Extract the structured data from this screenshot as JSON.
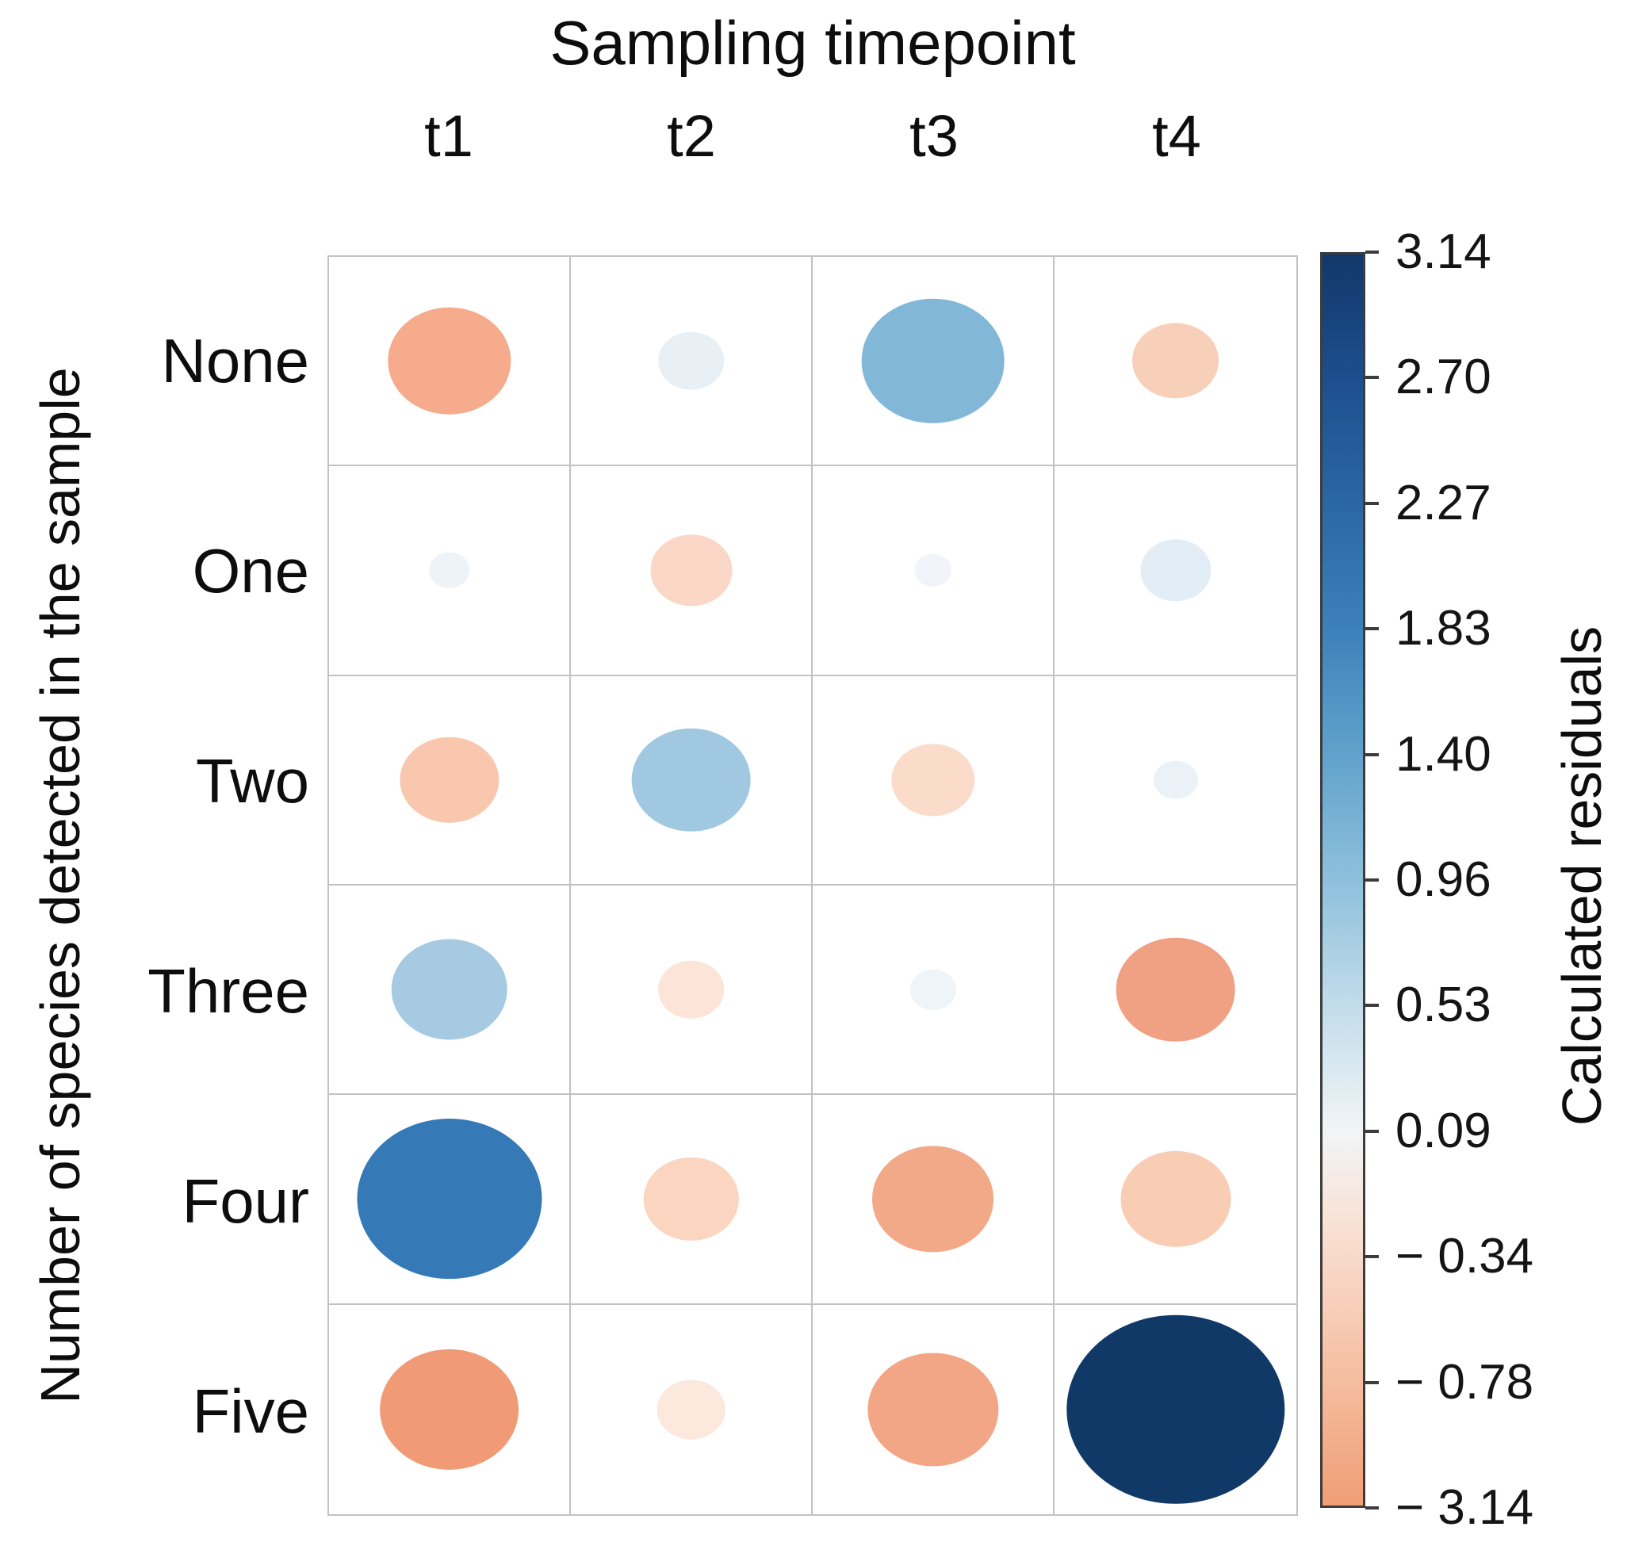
{
  "chart_data": {
    "type": "bubble-matrix",
    "title": "Sampling timepoint",
    "xlabel": "Sampling timepoint",
    "ylabel": "Number of species detected in the sample",
    "columns": [
      "t1",
      "t2",
      "t3",
      "t4"
    ],
    "rows": [
      "None",
      "One",
      "Two",
      "Three",
      "Four",
      "Five"
    ],
    "value_range": [
      -3.14,
      3.14
    ],
    "bubble_scaling": "area proportional to |residual|; diameter = 0.9 * sqrt(|v|/3.14) of cell",
    "series": [
      {
        "row": "None",
        "values": [
          -1.0,
          0.29,
          1.35,
          -0.5
        ],
        "colors": [
          "#f5ab8c",
          "#e8f0f6",
          "#82b7d7",
          "#f8cfb9"
        ]
      },
      {
        "row": "One",
        "values": [
          0.11,
          -0.44,
          0.09,
          0.33
        ],
        "colors": [
          "#eef3f8",
          "#fad7c6",
          "#f1f5f9",
          "#e3edf5"
        ]
      },
      {
        "row": "Two",
        "values": [
          -0.65,
          0.94,
          -0.46,
          0.13
        ],
        "colors": [
          "#f8c7ae",
          "#a0c8e0",
          "#fbdccb",
          "#eaf2f8"
        ]
      },
      {
        "row": "Three",
        "values": [
          0.89,
          -0.29,
          0.14,
          -0.94
        ],
        "colors": [
          "#a6cae1",
          "#fce4d8",
          "#eef4f8",
          "#f0a183"
        ]
      },
      {
        "row": "Four",
        "values": [
          2.25,
          -0.6,
          -0.98,
          -0.8
        ],
        "colors": [
          "#3579b7",
          "#fbd5bf",
          "#f2a988",
          "#f9cdb4"
        ]
      },
      {
        "row": "Five",
        "values": [
          -1.28,
          -0.31,
          -1.13,
          3.14
        ],
        "colors": [
          "#f09b76",
          "#fce8dd",
          "#f2a685",
          "#113968"
        ]
      }
    ],
    "colorbar": {
      "title": "Calculated residuals",
      "position": "right",
      "max": 3.14,
      "min": -3.14,
      "tick_labels": [
        "3.14",
        "2.70",
        "2.27",
        "1.83",
        "1.40",
        "0.96",
        "0.53",
        "0.09",
        "− 0.34",
        "− 0.78",
        "− 3.14"
      ],
      "gradient_stops": [
        {
          "pos": 0,
          "color": "#12386a"
        },
        {
          "pos": 10,
          "color": "#1d4f8e"
        },
        {
          "pos": 20,
          "color": "#2b67a5"
        },
        {
          "pos": 30,
          "color": "#3d81bb"
        },
        {
          "pos": 40,
          "color": "#61a2cb"
        },
        {
          "pos": 50,
          "color": "#8ec0dc"
        },
        {
          "pos": 60,
          "color": "#c2dcea"
        },
        {
          "pos": 70,
          "color": "#f1f5f7"
        },
        {
          "pos": 78,
          "color": "#f9e0d3"
        },
        {
          "pos": 88,
          "color": "#f6c3a8"
        },
        {
          "pos": 100,
          "color": "#f09e75"
        }
      ]
    },
    "grid": {
      "line_color": "#c2c2c2",
      "shown": true
    }
  }
}
